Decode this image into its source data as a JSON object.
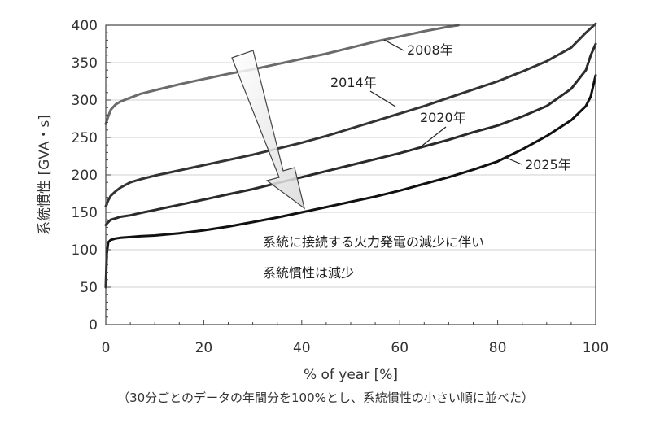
{
  "chart_data": {
    "type": "line",
    "xlabel": "% of year [%]",
    "ylabel": "系統慣性 [GVA・s]",
    "xlim": [
      0,
      100
    ],
    "ylim": [
      0,
      400
    ],
    "x_ticks": [
      0,
      20,
      40,
      60,
      80,
      100
    ],
    "y_ticks": [
      0,
      50,
      100,
      150,
      200,
      250,
      300,
      350,
      400
    ],
    "grid": "horizontal",
    "series": [
      {
        "name": "2008年",
        "color": "#6b6b6b",
        "x": [
          0,
          0.5,
          1,
          2,
          3,
          5,
          7,
          10,
          15,
          20,
          25,
          30,
          35,
          40,
          45,
          50,
          55,
          60,
          65,
          70,
          72
        ],
        "y": [
          268,
          278,
          287,
          294,
          298,
          303,
          308,
          313,
          321,
          328,
          335,
          341,
          348,
          355,
          362,
          370,
          378,
          385,
          392,
          398,
          400
        ]
      },
      {
        "name": "2014年",
        "color": "#333333",
        "x": [
          0,
          0.5,
          1,
          2,
          3,
          5,
          7,
          10,
          15,
          20,
          25,
          30,
          35,
          40,
          45,
          50,
          55,
          60,
          65,
          70,
          75,
          80,
          85,
          90,
          95,
          98,
          100
        ],
        "y": [
          158,
          166,
          172,
          178,
          183,
          190,
          194,
          199,
          206,
          213,
          220,
          227,
          235,
          243,
          252,
          262,
          272,
          282,
          292,
          303,
          314,
          325,
          338,
          352,
          370,
          390,
          402
        ]
      },
      {
        "name": "2020年",
        "color": "#2a2a2a",
        "x": [
          0,
          0.5,
          1,
          2,
          3,
          5,
          7,
          10,
          15,
          20,
          25,
          30,
          35,
          40,
          45,
          50,
          55,
          60,
          65,
          70,
          75,
          80,
          85,
          90,
          95,
          98,
          99,
          100
        ],
        "y": [
          133,
          137,
          140,
          142,
          144,
          146,
          149,
          153,
          160,
          167,
          174,
          181,
          189,
          197,
          205,
          213,
          221,
          229,
          238,
          247,
          257,
          266,
          278,
          292,
          315,
          340,
          360,
          375
        ]
      },
      {
        "name": "2025年",
        "color": "#111111",
        "x": [
          0,
          0.2,
          0.5,
          1,
          2,
          3,
          5,
          7,
          10,
          15,
          20,
          25,
          30,
          35,
          40,
          45,
          50,
          55,
          60,
          65,
          70,
          75,
          80,
          85,
          90,
          95,
          98,
          99,
          100
        ],
        "y": [
          50,
          95,
          110,
          113,
          115,
          116,
          117,
          118,
          119,
          122,
          126,
          131,
          137,
          143,
          150,
          157,
          164,
          171,
          179,
          188,
          197,
          207,
          218,
          234,
          252,
          273,
          292,
          305,
          333
        ]
      }
    ],
    "series_labels": [
      "2008年",
      "2014年",
      "2020年",
      "2025年"
    ],
    "annotation": [
      "系統に接続する火力発電の減少に伴い",
      "系統慣性は減少"
    ]
  },
  "caption": "（30分ごとのデータの年間分を100%とし、系統慣性の小さい順に並べた）"
}
